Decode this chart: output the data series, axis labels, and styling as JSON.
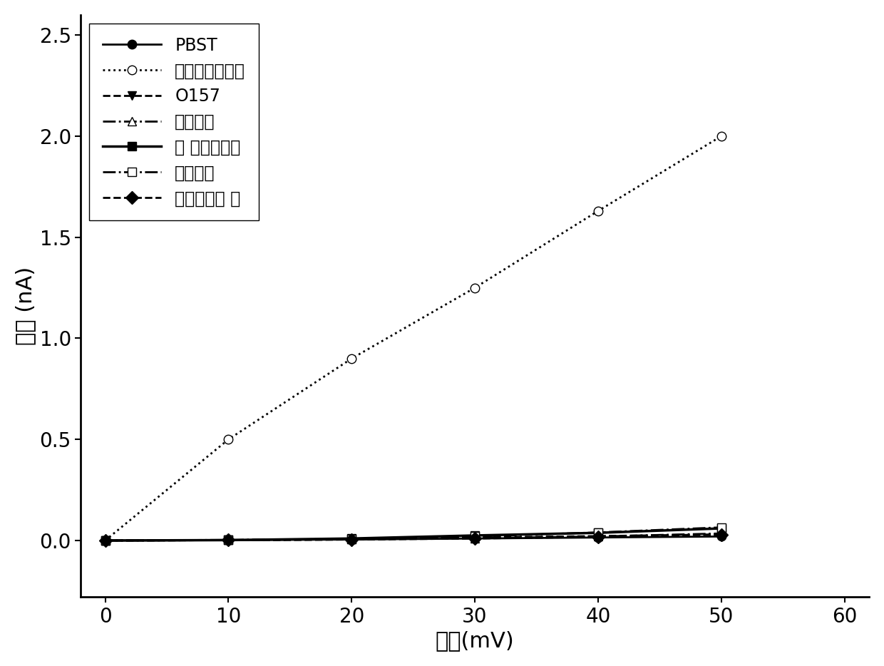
{
  "x": [
    0,
    10,
    20,
    30,
    40,
    50
  ],
  "series": [
    {
      "label": "PBST",
      "y": [
        0.0,
        0.002,
        0.005,
        0.01,
        0.015,
        0.02
      ],
      "linestyle": "-",
      "marker": "o",
      "markerfacecolor": "black",
      "markeredgecolor": "black",
      "color": "black",
      "linewidth": 2.0,
      "markersize": 9,
      "zorder": 5
    },
    {
      "label": "金黄色葡萄球菌",
      "y": [
        0.0,
        0.5,
        0.9,
        1.25,
        1.63,
        2.0
      ],
      "linestyle": ":",
      "marker": "o",
      "markerfacecolor": "white",
      "markeredgecolor": "black",
      "color": "black",
      "linewidth": 2.0,
      "markersize": 9,
      "zorder": 4
    },
    {
      "label": "O157",
      "y": [
        0.0,
        0.002,
        0.005,
        0.015,
        0.022,
        0.03
      ],
      "linestyle": "--",
      "marker": "v",
      "markerfacecolor": "black",
      "markeredgecolor": "black",
      "color": "black",
      "linewidth": 2.0,
      "markersize": 9,
      "zorder": 3
    },
    {
      "label": "沙门氏菌",
      "y": [
        0.0,
        0.003,
        0.006,
        0.012,
        0.02,
        0.035
      ],
      "linestyle": "-.",
      "marker": "^",
      "markerfacecolor": "white",
      "markeredgecolor": "black",
      "color": "black",
      "linewidth": 2.0,
      "markersize": 9,
      "zorder": 3
    },
    {
      "label": "副 溶血性弧菌",
      "y": [
        0.0,
        0.002,
        0.01,
        0.025,
        0.038,
        0.06
      ],
      "linestyle": "-",
      "marker": "s",
      "markerfacecolor": "black",
      "markeredgecolor": "black",
      "color": "black",
      "linewidth": 2.5,
      "markersize": 9,
      "zorder": 3
    },
    {
      "label": "志贺氏菌",
      "y": [
        0.0,
        0.002,
        0.008,
        0.02,
        0.04,
        0.065
      ],
      "linestyle": "-.",
      "marker": "s",
      "markerfacecolor": "white",
      "markeredgecolor": "black",
      "color": "black",
      "linewidth": 2.0,
      "markersize": 9,
      "zorder": 3
    },
    {
      "label": "铜绻假单胞 菌",
      "y": [
        0.0,
        0.002,
        0.005,
        0.01,
        0.018,
        0.03
      ],
      "linestyle": "--",
      "marker": "D",
      "markerfacecolor": "black",
      "markeredgecolor": "black",
      "color": "black",
      "linewidth": 2.0,
      "markersize": 9,
      "zorder": 3
    }
  ],
  "xlabel": "电压(mV)",
  "ylabel": "电流 (nA)",
  "xlim": [
    -2,
    62
  ],
  "ylim": [
    -0.28,
    2.6
  ],
  "xticks": [
    0,
    10,
    20,
    30,
    40,
    50,
    60
  ],
  "yticks": [
    0.0,
    0.5,
    1.0,
    1.5,
    2.0,
    2.5
  ],
  "legend_loc": "upper left",
  "font_size_label": 22,
  "font_size_tick": 20,
  "font_size_legend": 17,
  "background_color": "#ffffff"
}
